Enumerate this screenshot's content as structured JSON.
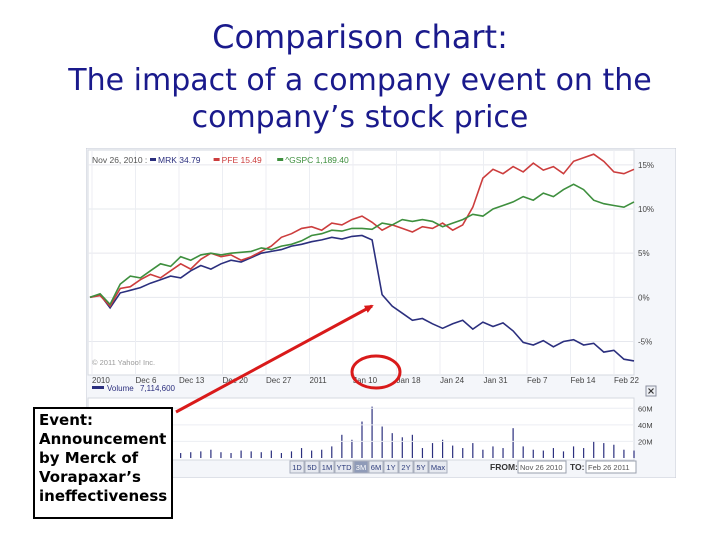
{
  "slide": {
    "title": "Comparison chart:",
    "subtitle": "The impact of a company event on the company’s stock price"
  },
  "event_box": {
    "text": "Event: Announcement by Merck of Vorapaxar’s ineffectiveness"
  },
  "chart_data": {
    "type": "line",
    "header_date": "Nov 26, 2010 :",
    "copyright": "© 2011 Yahoo! Inc.",
    "x_ticks": [
      "2010",
      "Dec 6",
      "Dec 13",
      "Dec 20",
      "Dec 27",
      "2011",
      "Jan 10",
      "Jan 18",
      "Jan 24",
      "Jan 31",
      "Feb 7",
      "Feb 14",
      "Feb 22"
    ],
    "y_ticks": [
      "15%",
      "10%",
      "5%",
      "0%",
      "-5%"
    ],
    "ylim": [
      -8,
      16
    ],
    "series": [
      {
        "name": "MRK",
        "legend_value": "34.79",
        "color": "#2b2f7e",
        "values": [
          0,
          0.3,
          -1.2,
          0.5,
          0.8,
          1.1,
          1.6,
          2.0,
          2.4,
          2.2,
          3.0,
          3.6,
          3.2,
          3.8,
          4.2,
          4.0,
          4.5,
          5.0,
          5.2,
          5.4,
          5.8,
          6.0,
          6.3,
          6.5,
          6.8,
          6.6,
          6.9,
          7.0,
          6.5,
          0.3,
          -1.0,
          -1.8,
          -2.6,
          -2.4,
          -3.0,
          -3.5,
          -3.0,
          -2.6,
          -3.6,
          -2.8,
          -3.3,
          -2.9,
          -3.8,
          -5.1,
          -5.4,
          -4.9,
          -5.6,
          -5.0,
          -4.8,
          -5.4,
          -5.2,
          -6.2,
          -6.0,
          -7.0,
          -7.2
        ]
      },
      {
        "name": "PFE",
        "legend_value": "15.49",
        "color": "#cc3d3d",
        "values": [
          0,
          0.2,
          -1.0,
          1.0,
          1.2,
          2.0,
          2.6,
          2.2,
          3.0,
          3.8,
          3.2,
          4.3,
          5.0,
          4.6,
          4.8,
          4.2,
          4.6,
          5.2,
          5.8,
          6.8,
          7.2,
          7.8,
          8.0,
          7.6,
          8.4,
          8.2,
          8.8,
          9.2,
          8.5,
          7.6,
          8.2,
          7.8,
          7.4,
          8.0,
          7.8,
          8.4,
          7.6,
          8.2,
          10.2,
          13.5,
          14.5,
          14.0,
          14.8,
          14.2,
          15.2,
          14.4,
          14.8,
          14.0,
          15.4,
          15.8,
          16.2,
          15.4,
          14.2,
          14.0,
          14.5
        ]
      },
      {
        "name": "^GSPC",
        "legend_value": "1,189.40",
        "color": "#3e8f3e",
        "values": [
          0,
          0.4,
          -0.8,
          1.5,
          2.4,
          2.2,
          3.0,
          3.8,
          3.5,
          4.6,
          4.2,
          4.8,
          5.0,
          4.8,
          5.0,
          5.1,
          5.2,
          5.6,
          5.4,
          5.8,
          6.0,
          6.4,
          7.0,
          7.2,
          7.6,
          7.5,
          7.8,
          7.8,
          7.7,
          8.4,
          8.2,
          8.8,
          8.6,
          8.8,
          8.6,
          8.0,
          8.4,
          8.8,
          9.4,
          9.2,
          10.0,
          10.4,
          10.8,
          11.4,
          11.0,
          11.8,
          11.4,
          12.2,
          12.8,
          12.2,
          11.0,
          10.6,
          10.4,
          10.2,
          10.8
        ]
      }
    ],
    "volume": {
      "label": "Volume",
      "legend_value": "7,114,600",
      "y_ticks": [
        "60M",
        "40M",
        "20M"
      ],
      "ylim": [
        0,
        70
      ],
      "values": [
        8,
        6,
        9,
        7,
        10,
        6,
        8,
        7,
        9,
        6,
        7,
        8,
        10,
        7,
        6,
        9,
        8,
        7,
        9,
        6,
        8,
        12,
        9,
        10,
        14,
        28,
        22,
        44,
        62,
        38,
        30,
        25,
        28,
        12,
        18,
        22,
        15,
        12,
        18,
        10,
        14,
        12,
        36,
        14,
        10,
        9,
        12,
        8,
        14,
        12,
        20,
        18,
        16,
        10,
        9
      ]
    },
    "ranges": [
      "1D",
      "5D",
      "1M",
      "YTD",
      "3M",
      "6M",
      "1Y",
      "2Y",
      "5Y",
      "Max"
    ],
    "selected_range": "3M",
    "from_label": "FROM:",
    "from_value": "Nov 26 2010",
    "to_label": "TO:",
    "to_value": "Feb 26 2011",
    "close_icon": "close-icon",
    "annotation_color": "#d91a1a"
  }
}
